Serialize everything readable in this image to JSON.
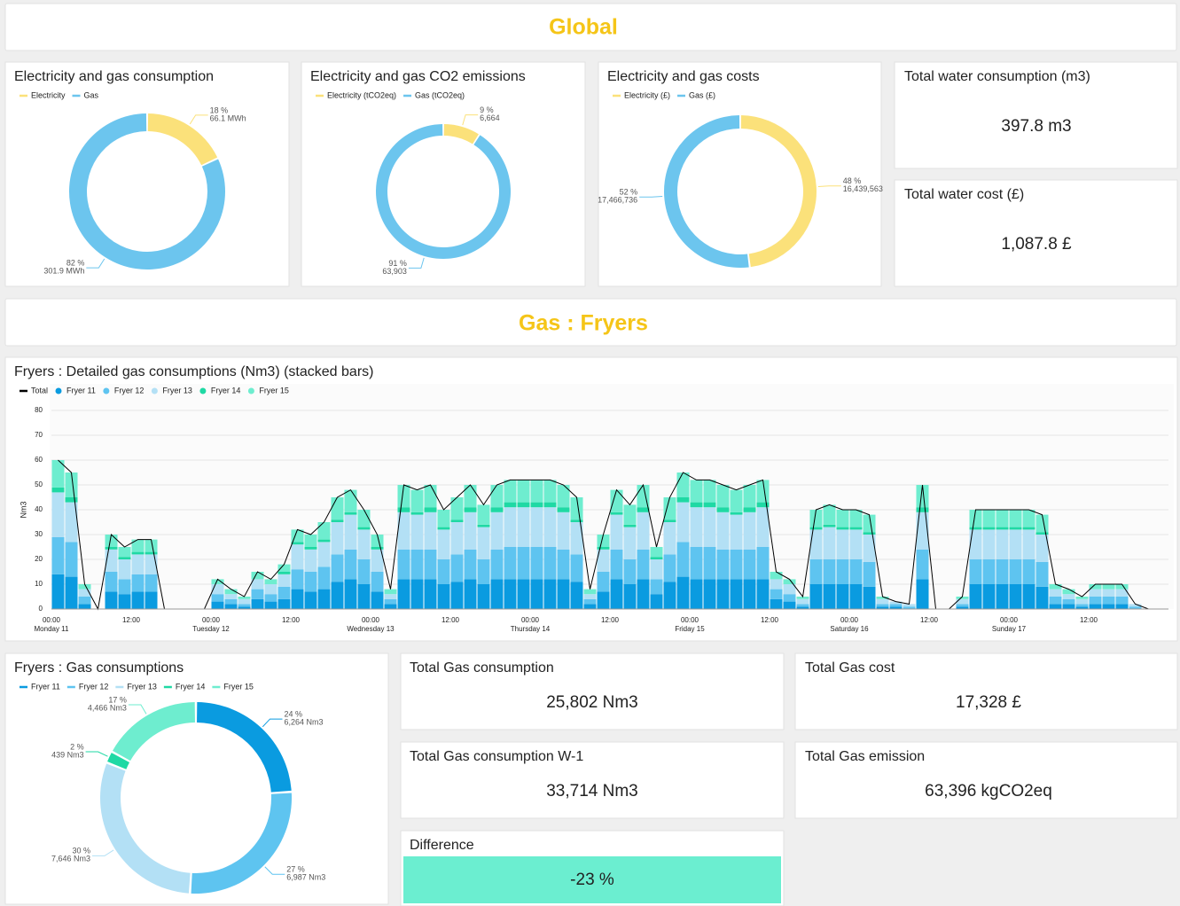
{
  "sections": [
    "Global",
    "Gas : Fryers"
  ],
  "kpis": [
    {
      "title": "Total water consumption (m3)",
      "value": "397.8 m3"
    },
    {
      "title": "Total water cost (£)",
      "value": "1,087.8 £"
    },
    {
      "title": "Total Gas consumption",
      "value": "25,802 Nm3"
    },
    {
      "title": "Total Gas cost",
      "value": "17,328 £"
    },
    {
      "title": "Total Gas consumption W-1",
      "value": "33,714 Nm3"
    },
    {
      "title": "Total Gas emission",
      "value": "63,396 kgCO2eq"
    },
    {
      "title": "Difference",
      "value": "-23 %"
    }
  ],
  "chart_data": [
    {
      "type": "pie",
      "title": "Electricity and gas consumption",
      "categories": [
        "Electricity",
        "Gas"
      ],
      "colors": [
        "#fbe17a",
        "#6cc5ee"
      ],
      "values": [
        18,
        82
      ],
      "value_labels": [
        "18 %",
        "82 %"
      ],
      "amount_labels": [
        "66.1 MWh",
        "301.9 MWh"
      ]
    },
    {
      "type": "pie",
      "title": "Electricity and gas CO2 emissions",
      "categories": [
        "Electricity (tCO2eq)",
        "Gas (tCO2eq)"
      ],
      "colors": [
        "#fbe17a",
        "#6cc5ee"
      ],
      "values": [
        9,
        91
      ],
      "value_labels": [
        "9 %",
        "91 %"
      ],
      "amount_labels": [
        "6,664",
        "63,903"
      ]
    },
    {
      "type": "pie",
      "title": "Electricity and gas costs",
      "categories": [
        "Electricity (£)",
        "Gas (£)"
      ],
      "colors": [
        "#fbe17a",
        "#6cc5ee"
      ],
      "values": [
        48,
        52
      ],
      "value_labels": [
        "48 %",
        "52 %"
      ],
      "amount_labels": [
        "16,439,563",
        "17,466,736"
      ]
    },
    {
      "type": "bar",
      "stacked": true,
      "title": "Fryers : Detailed gas consumptions (Nm3) (stacked bars)",
      "y_label": "Nm3",
      "grid": true,
      "ylim": [
        0,
        80
      ],
      "yticks": [
        0,
        10,
        20,
        30,
        40,
        50,
        60,
        70,
        80
      ],
      "categories": [
        "00:00",
        null,
        null,
        null,
        null,
        null,
        "12:00",
        null,
        null,
        null,
        null,
        null,
        "00:00",
        null,
        null,
        null,
        null,
        null,
        "12:00",
        null,
        null,
        null,
        null,
        null,
        "00:00",
        null,
        null,
        null,
        null,
        null,
        "12:00",
        null,
        null,
        null,
        null,
        null,
        "00:00",
        null,
        null,
        null,
        null,
        null,
        "12:00",
        null,
        null,
        null,
        null,
        null,
        "00:00",
        null,
        null,
        null,
        null,
        null,
        "12:00",
        null,
        null,
        null,
        null,
        null,
        "00:00",
        null,
        null,
        null,
        null,
        null,
        "12:00",
        null,
        null,
        null,
        null,
        null,
        "00:00",
        null,
        null,
        null,
        null,
        null,
        "12:00",
        null,
        null,
        null,
        null,
        null
      ],
      "day_labels": [
        "Monday 11",
        null,
        null,
        null,
        null,
        null,
        null,
        null,
        null,
        null,
        null,
        null,
        "Tuesday 12",
        null,
        null,
        null,
        null,
        null,
        null,
        null,
        null,
        null,
        null,
        null,
        "Wednesday 13",
        null,
        null,
        null,
        null,
        null,
        null,
        null,
        null,
        null,
        null,
        null,
        "Thursday 14",
        null,
        null,
        null,
        null,
        null,
        null,
        null,
        null,
        null,
        null,
        null,
        "Friday 15",
        null,
        null,
        null,
        null,
        null,
        null,
        null,
        null,
        null,
        null,
        null,
        "Saturday 16",
        null,
        null,
        null,
        null,
        null,
        null,
        null,
        null,
        null,
        null,
        null,
        "Sunday 17",
        null,
        null,
        null,
        null,
        null,
        null,
        null,
        null,
        null,
        null,
        null
      ],
      "series": [
        {
          "name": "Total",
          "color": "#000000",
          "mark": "line",
          "values": [
            60,
            55,
            10,
            0,
            30,
            25,
            28,
            28,
            0,
            0,
            0,
            0,
            12,
            8,
            5,
            15,
            12,
            18,
            32,
            30,
            35,
            45,
            48,
            40,
            30,
            8,
            50,
            48,
            50,
            40,
            45,
            50,
            42,
            50,
            52,
            52,
            52,
            52,
            50,
            45,
            8,
            30,
            48,
            42,
            50,
            25,
            45,
            55,
            52,
            52,
            50,
            48,
            50,
            52,
            15,
            12,
            5,
            40,
            42,
            40,
            40,
            38,
            5,
            3,
            2,
            50,
            0,
            0,
            5,
            40,
            40,
            40,
            40,
            40,
            38,
            10,
            8,
            5,
            10,
            10,
            10,
            2,
            0,
            0
          ]
        },
        {
          "name": "Fryer 11",
          "color": "#0a9be0",
          "values": [
            14,
            13,
            2,
            0,
            7,
            6,
            7,
            7,
            0,
            0,
            0,
            0,
            3,
            2,
            1,
            4,
            3,
            4,
            8,
            7,
            8,
            11,
            12,
            10,
            7,
            2,
            12,
            12,
            12,
            10,
            11,
            12,
            10,
            12,
            12,
            12,
            12,
            12,
            12,
            11,
            2,
            7,
            12,
            10,
            12,
            6,
            11,
            13,
            12,
            12,
            12,
            12,
            12,
            12,
            4,
            3,
            1,
            10,
            10,
            10,
            10,
            9,
            1,
            1,
            0,
            12,
            0,
            0,
            1,
            10,
            10,
            10,
            10,
            10,
            9,
            2,
            2,
            1,
            2,
            2,
            2,
            0,
            0,
            0
          ]
        },
        {
          "name": "Fryer 12",
          "color": "#5ec4f0",
          "values": [
            15,
            14,
            3,
            0,
            8,
            6,
            7,
            7,
            0,
            0,
            0,
            0,
            3,
            2,
            1,
            4,
            3,
            5,
            8,
            8,
            9,
            11,
            12,
            10,
            8,
            2,
            12,
            12,
            12,
            10,
            11,
            12,
            10,
            12,
            13,
            13,
            13,
            13,
            12,
            11,
            2,
            8,
            12,
            10,
            12,
            6,
            11,
            14,
            13,
            13,
            12,
            12,
            12,
            13,
            4,
            3,
            1,
            10,
            10,
            10,
            10,
            10,
            1,
            1,
            1,
            12,
            0,
            0,
            1,
            10,
            10,
            10,
            10,
            10,
            10,
            3,
            2,
            1,
            3,
            3,
            3,
            1,
            0,
            0
          ]
        },
        {
          "name": "Fryer 13",
          "color": "#b3e0f5",
          "values": [
            18,
            16,
            3,
            0,
            9,
            8,
            8,
            8,
            0,
            0,
            0,
            0,
            4,
            2,
            2,
            4,
            4,
            5,
            10,
            9,
            10,
            13,
            14,
            12,
            9,
            2,
            15,
            14,
            15,
            12,
            13,
            15,
            13,
            15,
            16,
            16,
            16,
            16,
            15,
            13,
            2,
            9,
            14,
            13,
            15,
            8,
            13,
            16,
            16,
            16,
            15,
            14,
            15,
            16,
            4,
            4,
            2,
            12,
            13,
            12,
            12,
            11,
            2,
            1,
            1,
            15,
            0,
            0,
            2,
            12,
            12,
            12,
            12,
            12,
            11,
            3,
            2,
            2,
            3,
            3,
            3,
            1,
            0,
            0
          ]
        },
        {
          "name": "Fryer 14",
          "color": "#1fd9a4",
          "values": [
            2,
            2,
            0,
            0,
            1,
            1,
            1,
            1,
            0,
            0,
            0,
            0,
            0,
            0,
            0,
            0,
            0,
            1,
            1,
            1,
            1,
            1,
            1,
            1,
            1,
            0,
            2,
            1,
            2,
            1,
            1,
            2,
            1,
            2,
            2,
            2,
            2,
            2,
            2,
            1,
            0,
            1,
            1,
            1,
            2,
            1,
            1,
            2,
            2,
            2,
            2,
            1,
            2,
            2,
            0,
            0,
            0,
            1,
            1,
            1,
            1,
            1,
            0,
            0,
            0,
            2,
            0,
            0,
            0,
            1,
            1,
            1,
            1,
            1,
            1,
            0,
            0,
            0,
            0,
            0,
            0,
            0,
            0,
            0
          ]
        },
        {
          "name": "Fryer 15",
          "color": "#6eedcf",
          "values": [
            11,
            10,
            2,
            0,
            5,
            4,
            5,
            5,
            0,
            0,
            0,
            0,
            2,
            2,
            1,
            3,
            2,
            3,
            5,
            5,
            7,
            9,
            9,
            7,
            5,
            2,
            9,
            9,
            9,
            7,
            9,
            9,
            8,
            9,
            9,
            9,
            9,
            9,
            9,
            9,
            2,
            5,
            9,
            8,
            9,
            4,
            9,
            10,
            9,
            9,
            9,
            9,
            9,
            9,
            3,
            2,
            1,
            7,
            8,
            7,
            7,
            7,
            1,
            0,
            0,
            9,
            0,
            0,
            1,
            7,
            7,
            7,
            7,
            7,
            7,
            2,
            2,
            1,
            2,
            2,
            2,
            0,
            0,
            0
          ]
        }
      ]
    },
    {
      "type": "pie",
      "title": "Fryers : Gas consumptions",
      "categories": [
        "Fryer 11",
        "Fryer 12",
        "Fryer 13",
        "Fryer 14",
        "Fryer 15"
      ],
      "colors": [
        "#0a9be0",
        "#5ec4f0",
        "#b3e0f5",
        "#1fd9a4",
        "#6eedcf"
      ],
      "values": [
        24,
        27,
        30,
        2,
        17
      ],
      "value_labels": [
        "24 %",
        "27 %",
        "30 %",
        "2 %",
        "17 %"
      ],
      "amount_labels": [
        "6,264 Nm3",
        "6,987 Nm3",
        "7,646 Nm3",
        "439 Nm3",
        "4,466 Nm3"
      ]
    }
  ]
}
